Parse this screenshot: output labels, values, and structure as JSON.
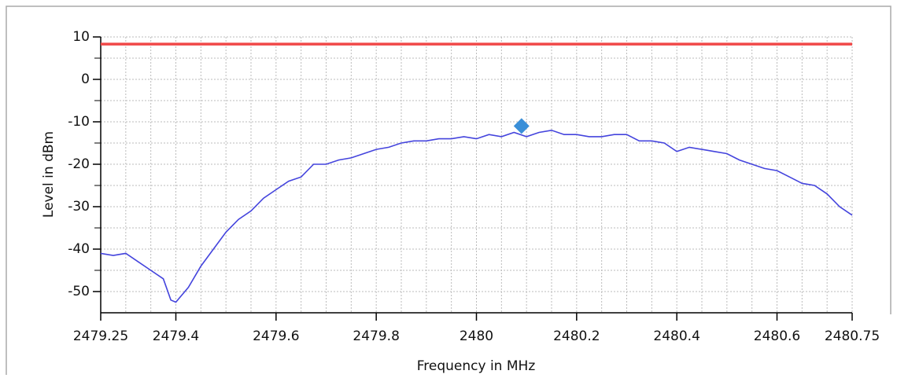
{
  "chart_data": {
    "type": "line",
    "xlabel": "Frequency in MHz",
    "ylabel": "Level in dBm",
    "x": [
      2479.25,
      2479.275,
      2479.3,
      2479.325,
      2479.35,
      2479.375,
      2479.39,
      2479.4,
      2479.425,
      2479.45,
      2479.475,
      2479.5,
      2479.525,
      2479.55,
      2479.575,
      2479.6,
      2479.625,
      2479.65,
      2479.675,
      2479.7,
      2479.725,
      2479.75,
      2479.775,
      2479.8,
      2479.825,
      2479.85,
      2479.875,
      2479.9,
      2479.925,
      2479.95,
      2479.975,
      2480.0,
      2480.025,
      2480.05,
      2480.075,
      2480.1,
      2480.125,
      2480.15,
      2480.175,
      2480.2,
      2480.225,
      2480.25,
      2480.275,
      2480.3,
      2480.325,
      2480.35,
      2480.375,
      2480.4,
      2480.425,
      2480.45,
      2480.475,
      2480.5,
      2480.525,
      2480.55,
      2480.575,
      2480.6,
      2480.625,
      2480.65,
      2480.675,
      2480.7,
      2480.725,
      2480.75
    ],
    "values": [
      -41,
      -41.5,
      -41,
      -43,
      -45,
      -47,
      -52,
      -52.5,
      -49,
      -44,
      -40,
      -36,
      -33,
      -31,
      -28,
      -26,
      -24,
      -23,
      -20,
      -20,
      -19,
      -18.5,
      -17.5,
      -16.5,
      -16,
      -15,
      -14.5,
      -14.5,
      -14,
      -14,
      -13.5,
      -14,
      -13,
      -13.5,
      -12.5,
      -13.5,
      -12.5,
      -12,
      -13,
      -13,
      -13.5,
      -13.5,
      -13,
      -13,
      -14.5,
      -14.5,
      -15,
      -17,
      -16,
      -16.5,
      -17,
      -17.5,
      -19,
      -20,
      -21,
      -21.5,
      -23,
      -24.5,
      -25,
      -27,
      -30,
      -32
    ],
    "color": "#4444dd",
    "threshold": {
      "value": 8.3,
      "color": "#f04848"
    },
    "marker": {
      "x": 2480.09,
      "y": -11,
      "color": "#3a8fd8"
    },
    "xlim": [
      2479.25,
      2480.75
    ],
    "ylim": [
      -55,
      10
    ],
    "xticks": [
      2479.25,
      2479.4,
      2479.6,
      2479.8,
      2480,
      2480.2,
      2480.4,
      2480.6,
      2480.75
    ],
    "yticks": [
      -50,
      -40,
      -30,
      -20,
      -10,
      0,
      10
    ],
    "grid": true
  }
}
